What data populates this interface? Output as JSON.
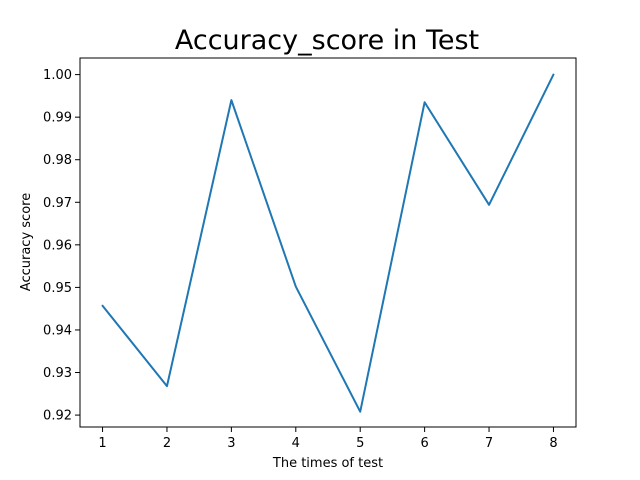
{
  "chart_data": {
    "type": "line",
    "title": "Accuracy_score in Test",
    "xlabel": "The times of test",
    "ylabel": "Accuracy score",
    "x": [
      1,
      2,
      3,
      4,
      5,
      6,
      7,
      8
    ],
    "xticks": [
      1,
      2,
      3,
      4,
      5,
      6,
      7,
      8
    ],
    "xtick_labels": [
      "1",
      "2",
      "3",
      "4",
      "5",
      "6",
      "7",
      "8"
    ],
    "xlim": [
      0.65,
      8.35
    ],
    "yticks": [
      0.92,
      0.93,
      0.94,
      0.95,
      0.96,
      0.97,
      0.98,
      0.99,
      1.0
    ],
    "ytick_labels": [
      "0.92",
      "0.93",
      "0.94",
      "0.95",
      "0.96",
      "0.97",
      "0.98",
      "0.99",
      "1.00"
    ],
    "ylim": [
      0.9172,
      1.0039
    ],
    "grid": false,
    "series": [
      {
        "color": "#1f77b4",
        "values": [
          0.9457,
          0.9268,
          0.994,
          0.9502,
          0.9208,
          0.9935,
          0.9694,
          1.0
        ]
      }
    ]
  }
}
